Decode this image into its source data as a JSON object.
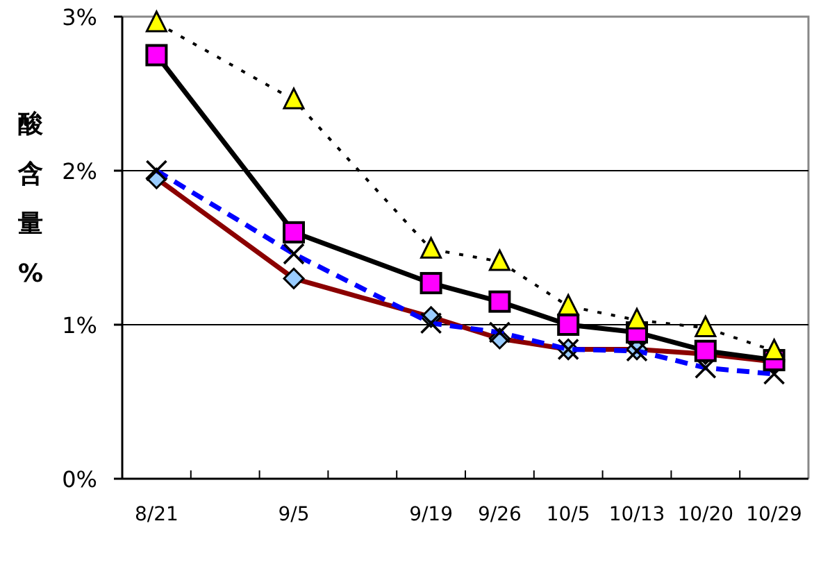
{
  "chart_data": {
    "type": "line",
    "ylabel": "酸含量%",
    "categories": [
      "8/21",
      null,
      "9/5",
      null,
      "9/19",
      "9/26",
      "10/5",
      "10/13",
      "10/20",
      "10/29"
    ],
    "ylim": [
      0,
      3
    ],
    "yticks": [
      {
        "value": 0,
        "label": "0%"
      },
      {
        "value": 1,
        "label": "1%"
      },
      {
        "value": 2,
        "label": "2%"
      },
      {
        "value": 3,
        "label": "3%"
      }
    ],
    "grid": "y",
    "series": [
      {
        "color": "#8b0000",
        "marker": "diamond",
        "line_style": "solid",
        "colors": [
          "#99ccff",
          null,
          "#99ccff",
          null,
          "#99ccff",
          "#99ccff",
          "#99ccff",
          "#99ccff",
          "#99ccff",
          "#99ccff"
        ],
        "values": [
          1.95,
          null,
          1.3,
          null,
          1.05,
          0.91,
          0.84,
          0.84,
          0.81,
          0.76
        ]
      },
      {
        "color": "#0000ff",
        "marker": "cross",
        "line_style": "dashed",
        "colors": [
          "#000000",
          null,
          "#000000",
          null,
          "#000000",
          "#000000",
          "#000000",
          "#000000",
          "#000000",
          "#000000"
        ],
        "values": [
          2.0,
          null,
          1.46,
          null,
          1.01,
          0.95,
          0.84,
          0.83,
          0.72,
          0.68
        ]
      },
      {
        "color": "#000000",
        "marker": "square",
        "line_style": "solid",
        "colors": [
          "#ff00ff",
          null,
          "#ff00ff",
          null,
          "#ff00ff",
          "#ff00ff",
          "#ff00ff",
          "#ff00ff",
          "#ff00ff",
          "#ff00ff"
        ],
        "values": [
          2.75,
          null,
          1.6,
          null,
          1.27,
          1.15,
          1.0,
          0.95,
          0.83,
          0.77
        ]
      },
      {
        "color": "#000000",
        "marker": "triangle",
        "line_style": "dotted",
        "colors": [
          "#ffff00",
          null,
          "#ffff00",
          null,
          "#ffff00",
          "#ffff00",
          "#ffff00",
          "#ffff00",
          "#ffff00",
          "#ffff00"
        ],
        "values": [
          2.96,
          null,
          2.46,
          null,
          1.49,
          1.41,
          1.12,
          1.03,
          0.98,
          0.83
        ]
      }
    ]
  }
}
